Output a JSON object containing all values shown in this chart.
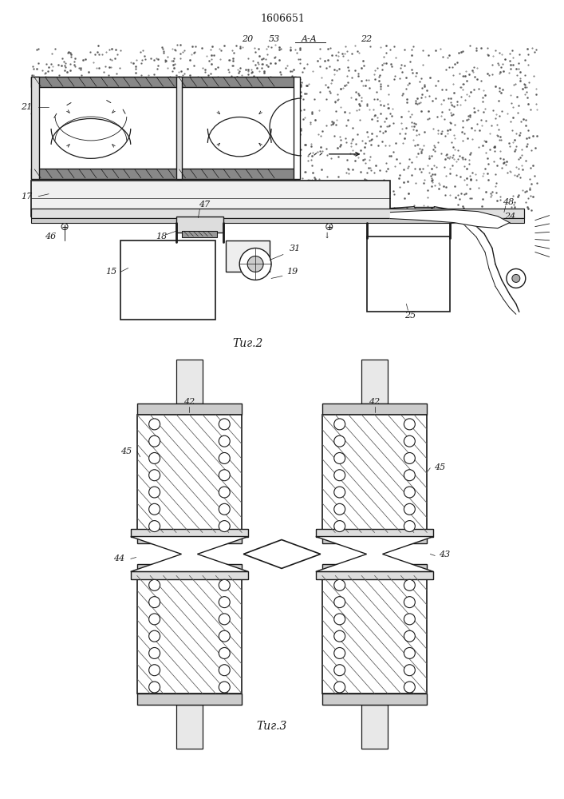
{
  "title": "1606651",
  "fig2_label": "Τиг.2",
  "fig3_label": "Τиг.3",
  "bg_color": "#ffffff",
  "line_color": "#1a1a1a"
}
